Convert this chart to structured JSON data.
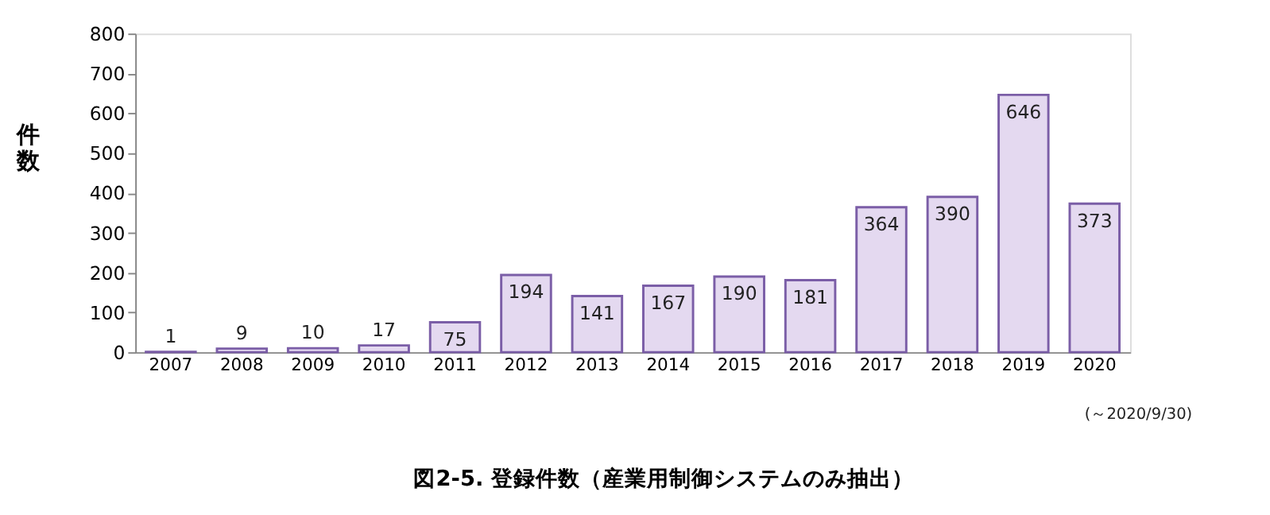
{
  "chart_data": {
    "type": "bar",
    "title": "図2-5. 登録件数（産業用制御システムのみ抽出）",
    "ylabel": "件数",
    "categories": [
      "2007",
      "2008",
      "2009",
      "2010",
      "2011",
      "2012",
      "2013",
      "2014",
      "2015",
      "2016",
      "2017",
      "2018",
      "2019",
      "2020"
    ],
    "values": [
      1,
      9,
      10,
      17,
      75,
      194,
      141,
      167,
      190,
      181,
      364,
      390,
      646,
      373
    ],
    "color": "#e4d9f0",
    "ylim": [
      0,
      800
    ],
    "yticks": [
      0,
      100,
      200,
      300,
      400,
      500,
      600,
      700,
      800
    ],
    "grid": false,
    "data_labels": true,
    "annotations": [
      "(～2020/9/30)"
    ]
  }
}
